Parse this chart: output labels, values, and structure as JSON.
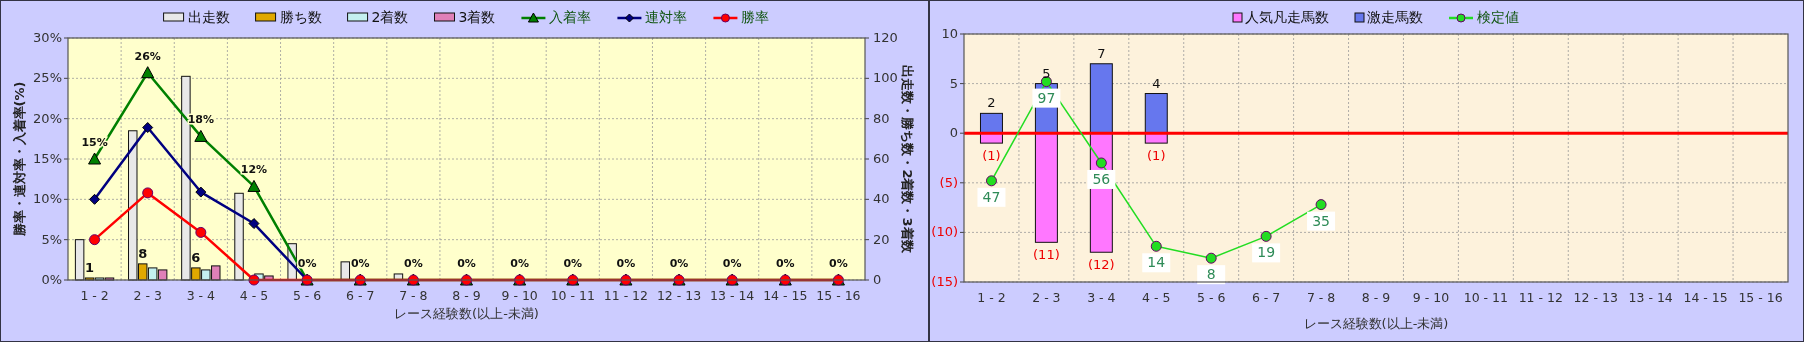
{
  "chart_data": [
    {
      "type": "bar",
      "categories": [
        "1 - 2",
        "2 - 3",
        "3 - 4",
        "4 - 5",
        "5 - 6",
        "6 - 7",
        "7 - 8",
        "8 - 9",
        "9 - 10",
        "10 - 11",
        "11 - 12",
        "12 - 13",
        "13 - 14",
        "14 - 15",
        "15 - 16"
      ],
      "xlabel": "レース経験数(以上-未満)",
      "ylabel": "勝率・連対率・入着率(%)",
      "y2label": "出走数・勝ち数・2着数・3着数",
      "ylim": [
        0,
        30
      ],
      "yticks": [
        {
          "value": 0,
          "label": "0%"
        },
        {
          "value": 5,
          "label": "5%"
        },
        {
          "value": 10,
          "label": "10%"
        },
        {
          "value": 15,
          "label": "15%"
        },
        {
          "value": 20,
          "label": "20%"
        },
        {
          "value": 25,
          "label": "25%"
        },
        {
          "value": 30,
          "label": "30%"
        }
      ],
      "y2lim": [
        0,
        120
      ],
      "y2ticks": [
        0,
        20,
        40,
        60,
        80,
        100,
        120
      ],
      "grid": true,
      "legend": "top",
      "series": [
        {
          "name": "出走数",
          "color": "#e8e8e8",
          "axis": "y2",
          "values": [
            20,
            74,
            101,
            43,
            18,
            9,
            3,
            0,
            0,
            0,
            0,
            0,
            0,
            0,
            0
          ]
        },
        {
          "name": "勝ち数",
          "color": "#e0a800",
          "axis": "y2",
          "values": [
            1,
            8,
            6,
            0,
            0,
            0,
            0,
            0,
            0,
            0,
            0,
            0,
            0,
            0,
            0
          ],
          "value_labels": [
            "1",
            "8",
            "6",
            null,
            null,
            null,
            null,
            null,
            null,
            null,
            null,
            null,
            null,
            null,
            null
          ]
        },
        {
          "name": "2着数",
          "color": "#c4f0f0",
          "axis": "y2",
          "values": [
            1,
            6,
            5,
            3,
            0,
            0,
            0,
            0,
            0,
            0,
            0,
            0,
            0,
            0,
            0
          ]
        },
        {
          "name": "3着数",
          "color": "#e080b8",
          "axis": "y2",
          "values": [
            1,
            5,
            7,
            2,
            0,
            0,
            0,
            0,
            0,
            0,
            0,
            0,
            0,
            0,
            0
          ]
        },
        {
          "name": "入着率",
          "type": "line",
          "color": "#008000",
          "marker": "triangle",
          "axis": "y",
          "values": [
            15,
            25.7,
            17.8,
            11.6,
            0,
            0,
            0,
            0,
            0,
            0,
            0,
            0,
            0,
            0,
            0
          ],
          "value_labels": [
            "15%",
            "26%",
            "18%",
            "12%",
            "0%",
            "0%",
            "0%",
            "0%",
            "0%",
            "0%",
            "0%",
            "0%",
            "0%",
            "0%",
            "0%"
          ]
        },
        {
          "name": "連対率",
          "type": "line",
          "color": "#000080",
          "marker": "diamond",
          "axis": "y",
          "values": [
            10,
            18.9,
            10.9,
            7,
            0,
            null,
            null,
            null,
            null,
            null,
            null,
            null,
            null,
            null,
            null
          ]
        },
        {
          "name": "勝率",
          "type": "line",
          "color": "#ff0000",
          "marker": "circle",
          "axis": "y",
          "values": [
            5,
            10.8,
            5.9,
            0,
            0,
            0,
            0,
            0,
            0,
            0,
            0,
            0,
            0,
            0,
            0
          ]
        }
      ]
    },
    {
      "type": "bar",
      "stacked": true,
      "categories": [
        "1 - 2",
        "2 - 3",
        "3 - 4",
        "4 - 5",
        "5 - 6",
        "6 - 7",
        "7 - 8",
        "8 - 9",
        "9 - 10",
        "10 - 11",
        "11 - 12",
        "12 - 13",
        "13 - 14",
        "14 - 15",
        "15 - 16"
      ],
      "xlabel": "レース経験数(以上-未満)",
      "ylim": [
        -15,
        10
      ],
      "yticks": [
        {
          "value": -15,
          "label": "(15)"
        },
        {
          "value": -10,
          "label": "(10)"
        },
        {
          "value": -5,
          "label": "(5)"
        },
        0,
        5,
        10
      ],
      "y2lim": [
        -4,
        121
      ],
      "grid": true,
      "legend": "top",
      "ref_lines": [
        {
          "axis": "y",
          "value": 0,
          "color": "#ff0000"
        }
      ],
      "series": [
        {
          "name": "人気凡走馬数",
          "color": "#ff77ff",
          "values": [
            -1,
            -11,
            -12,
            -1,
            null,
            null,
            null,
            null,
            null,
            null,
            null,
            null,
            null,
            null,
            null
          ],
          "value_labels": [
            "(1)",
            "(11)",
            "(12)",
            "(1)",
            null,
            null,
            null,
            null,
            null,
            null,
            null,
            null,
            null,
            null,
            null
          ]
        },
        {
          "name": "激走馬数",
          "color": "#6677ee",
          "values": [
            2,
            5,
            7,
            4,
            null,
            null,
            null,
            null,
            null,
            null,
            null,
            null,
            null,
            null,
            null
          ],
          "value_labels": [
            "2",
            "5",
            "7",
            "4",
            null,
            null,
            null,
            null,
            null,
            null,
            null,
            null,
            null,
            null,
            null
          ]
        },
        {
          "name": "検定値",
          "type": "line",
          "color": "#22dd22",
          "marker": "circle",
          "axis": "y2",
          "values": [
            47,
            97,
            56,
            14,
            8,
            19,
            35,
            null,
            null,
            null,
            null,
            null,
            null,
            null,
            null
          ],
          "value_labels": [
            "47",
            "97",
            "56",
            "14",
            "8",
            "19",
            "35",
            null,
            null,
            null,
            null,
            null,
            null,
            null,
            null
          ]
        }
      ]
    }
  ]
}
